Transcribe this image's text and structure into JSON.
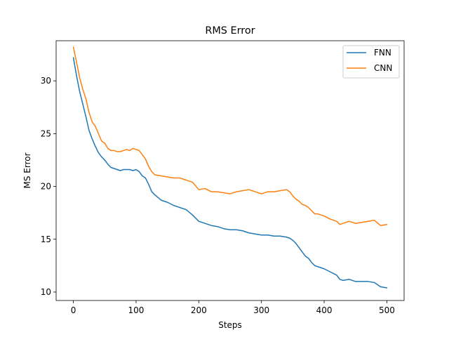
{
  "chart_data": {
    "type": "line",
    "title": "RMS Error",
    "xlabel": "Steps",
    "ylabel": "MS Error",
    "xlim": [
      -27.5,
      527.5
    ],
    "ylim": [
      9.2,
      33.8
    ],
    "xticks": [
      0,
      100,
      200,
      300,
      400,
      500
    ],
    "yticks": [
      10,
      15,
      20,
      25,
      30
    ],
    "grid": false,
    "legend_position": "upper right",
    "series": [
      {
        "name": "FNN",
        "color": "#1f77b4",
        "x": [
          0,
          5,
          10,
          15,
          20,
          25,
          30,
          35,
          40,
          45,
          50,
          55,
          60,
          65,
          70,
          75,
          80,
          85,
          90,
          95,
          100,
          105,
          110,
          115,
          120,
          125,
          130,
          140,
          150,
          160,
          170,
          180,
          190,
          200,
          210,
          220,
          230,
          240,
          250,
          260,
          270,
          280,
          290,
          300,
          310,
          320,
          330,
          340,
          345,
          350,
          355,
          360,
          365,
          370,
          375,
          380,
          385,
          390,
          395,
          400,
          410,
          420,
          425,
          430,
          440,
          450,
          460,
          470,
          480,
          490,
          500
        ],
        "y": [
          32.2,
          30.5,
          29.0,
          27.8,
          26.6,
          25.3,
          24.5,
          23.8,
          23.2,
          22.8,
          22.5,
          22.1,
          21.8,
          21.7,
          21.6,
          21.5,
          21.6,
          21.6,
          21.6,
          21.5,
          21.6,
          21.4,
          21.0,
          20.8,
          20.2,
          19.5,
          19.2,
          18.7,
          18.5,
          18.2,
          18.0,
          17.8,
          17.3,
          16.7,
          16.5,
          16.3,
          16.2,
          16.0,
          15.9,
          15.9,
          15.8,
          15.6,
          15.5,
          15.4,
          15.4,
          15.3,
          15.3,
          15.2,
          15.1,
          14.9,
          14.6,
          14.2,
          13.8,
          13.4,
          13.2,
          12.8,
          12.5,
          12.4,
          12.3,
          12.2,
          11.9,
          11.6,
          11.2,
          11.1,
          11.2,
          11.0,
          11.0,
          11.0,
          10.9,
          10.5,
          10.4
        ]
      },
      {
        "name": "CNN",
        "color": "#ff7f0e",
        "x": [
          0,
          5,
          10,
          15,
          20,
          25,
          30,
          35,
          40,
          45,
          50,
          55,
          60,
          65,
          70,
          75,
          80,
          85,
          90,
          95,
          100,
          105,
          110,
          115,
          120,
          125,
          130,
          140,
          150,
          160,
          170,
          180,
          190,
          200,
          210,
          220,
          230,
          240,
          250,
          260,
          270,
          280,
          290,
          300,
          310,
          320,
          330,
          340,
          345,
          350,
          355,
          360,
          365,
          370,
          375,
          380,
          385,
          390,
          395,
          400,
          410,
          420,
          425,
          430,
          440,
          450,
          460,
          470,
          480,
          490,
          500
        ],
        "y": [
          33.2,
          31.8,
          30.3,
          29.2,
          28.3,
          27.0,
          26.1,
          25.7,
          25.0,
          24.3,
          24.1,
          23.6,
          23.4,
          23.4,
          23.3,
          23.3,
          23.4,
          23.5,
          23.4,
          23.6,
          23.5,
          23.4,
          23.0,
          22.6,
          21.9,
          21.4,
          21.1,
          21.0,
          20.9,
          20.8,
          20.8,
          20.6,
          20.4,
          19.7,
          19.8,
          19.5,
          19.5,
          19.4,
          19.3,
          19.5,
          19.6,
          19.7,
          19.5,
          19.3,
          19.5,
          19.5,
          19.6,
          19.7,
          19.5,
          19.1,
          18.8,
          18.6,
          18.3,
          18.2,
          18.0,
          17.7,
          17.4,
          17.4,
          17.3,
          17.2,
          16.9,
          16.7,
          16.4,
          16.5,
          16.7,
          16.5,
          16.6,
          16.7,
          16.8,
          16.3,
          16.4
        ]
      }
    ]
  }
}
